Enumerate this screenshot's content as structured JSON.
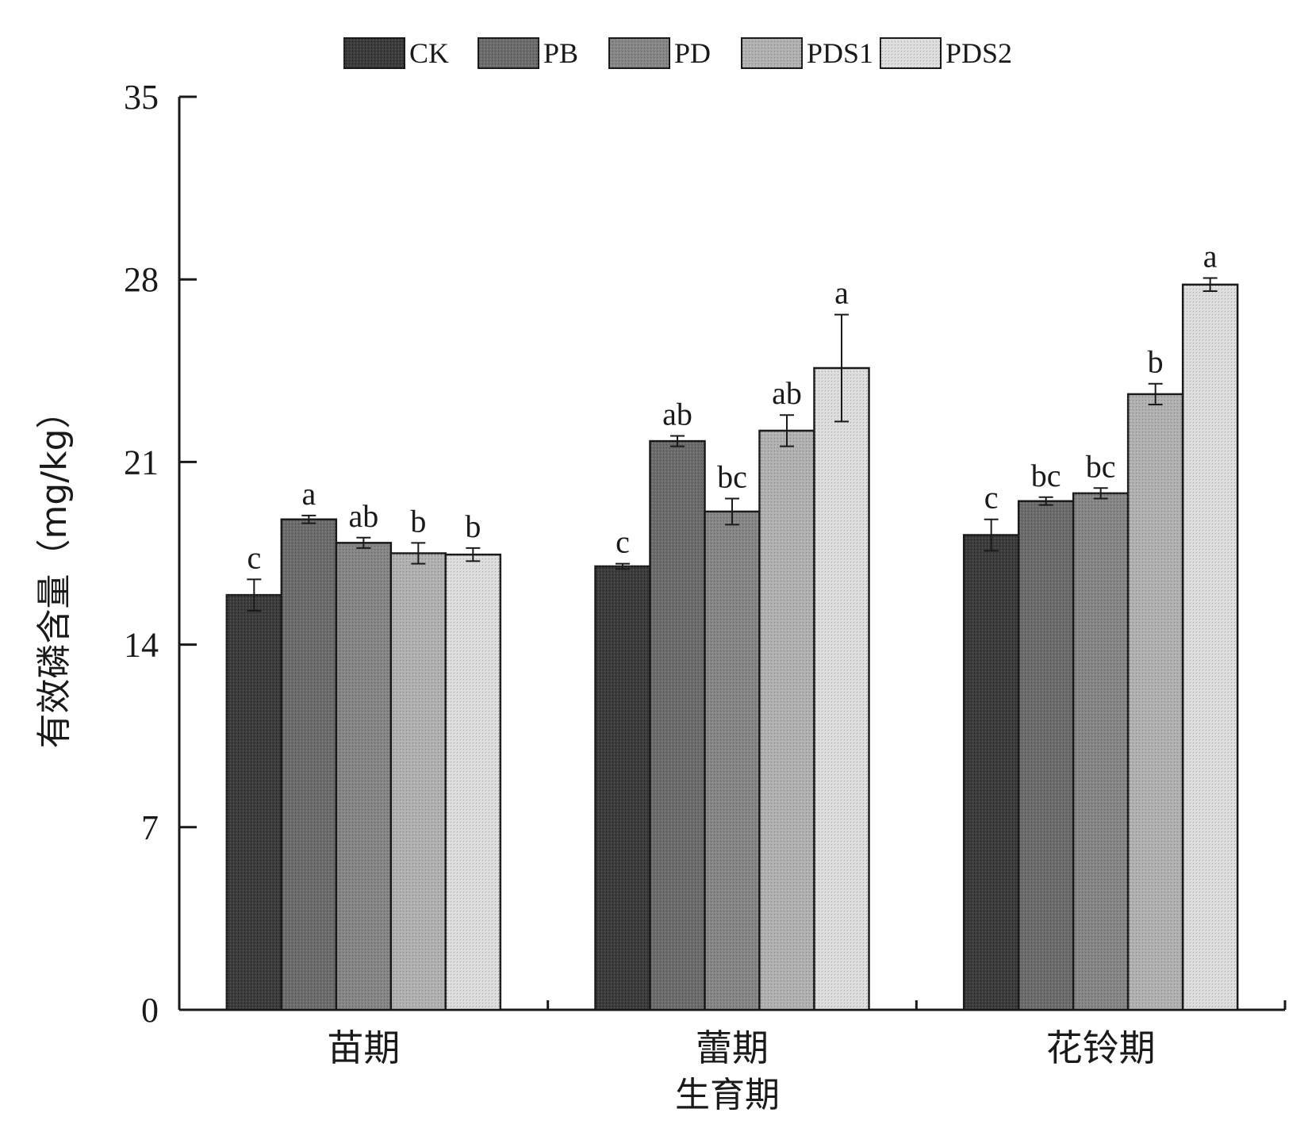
{
  "chart_data": {
    "type": "bar",
    "categories": [
      "苗期",
      "蕾期",
      "花铃期"
    ],
    "xlabel": "生育期",
    "ylabel": "有效磷含量（mg/kg）",
    "ylim": [
      0,
      35
    ],
    "yticks": [
      0,
      7,
      14,
      21,
      28,
      35
    ],
    "grid": false,
    "legend_position": "top",
    "series": [
      {
        "name": "CK",
        "color": "#3a3a3a",
        "values": [
          15.9,
          17.0,
          18.2
        ],
        "errors": [
          0.6,
          0.1,
          0.6
        ],
        "labels": [
          "c",
          "c",
          "c"
        ]
      },
      {
        "name": "PB",
        "color": "#6b6b6b",
        "values": [
          18.8,
          21.8,
          19.5
        ],
        "errors": [
          0.15,
          0.2,
          0.15
        ],
        "labels": [
          "a",
          "ab",
          "bc"
        ]
      },
      {
        "name": "PD",
        "color": "#858585",
        "values": [
          17.9,
          19.1,
          19.8
        ],
        "errors": [
          0.2,
          0.5,
          0.2
        ],
        "labels": [
          "ab",
          "bc",
          "bc"
        ]
      },
      {
        "name": "PDS1",
        "color": "#b0b0b0",
        "values": [
          17.5,
          22.2,
          23.6
        ],
        "errors": [
          0.4,
          0.6,
          0.4
        ],
        "labels": [
          "b",
          "ab",
          "b"
        ]
      },
      {
        "name": "PDS2",
        "color": "#dcdcdc",
        "values": [
          17.45,
          24.6,
          27.8
        ],
        "errors": [
          0.25,
          2.05,
          0.25
        ],
        "labels": [
          "b",
          "a",
          "a"
        ]
      }
    ]
  }
}
